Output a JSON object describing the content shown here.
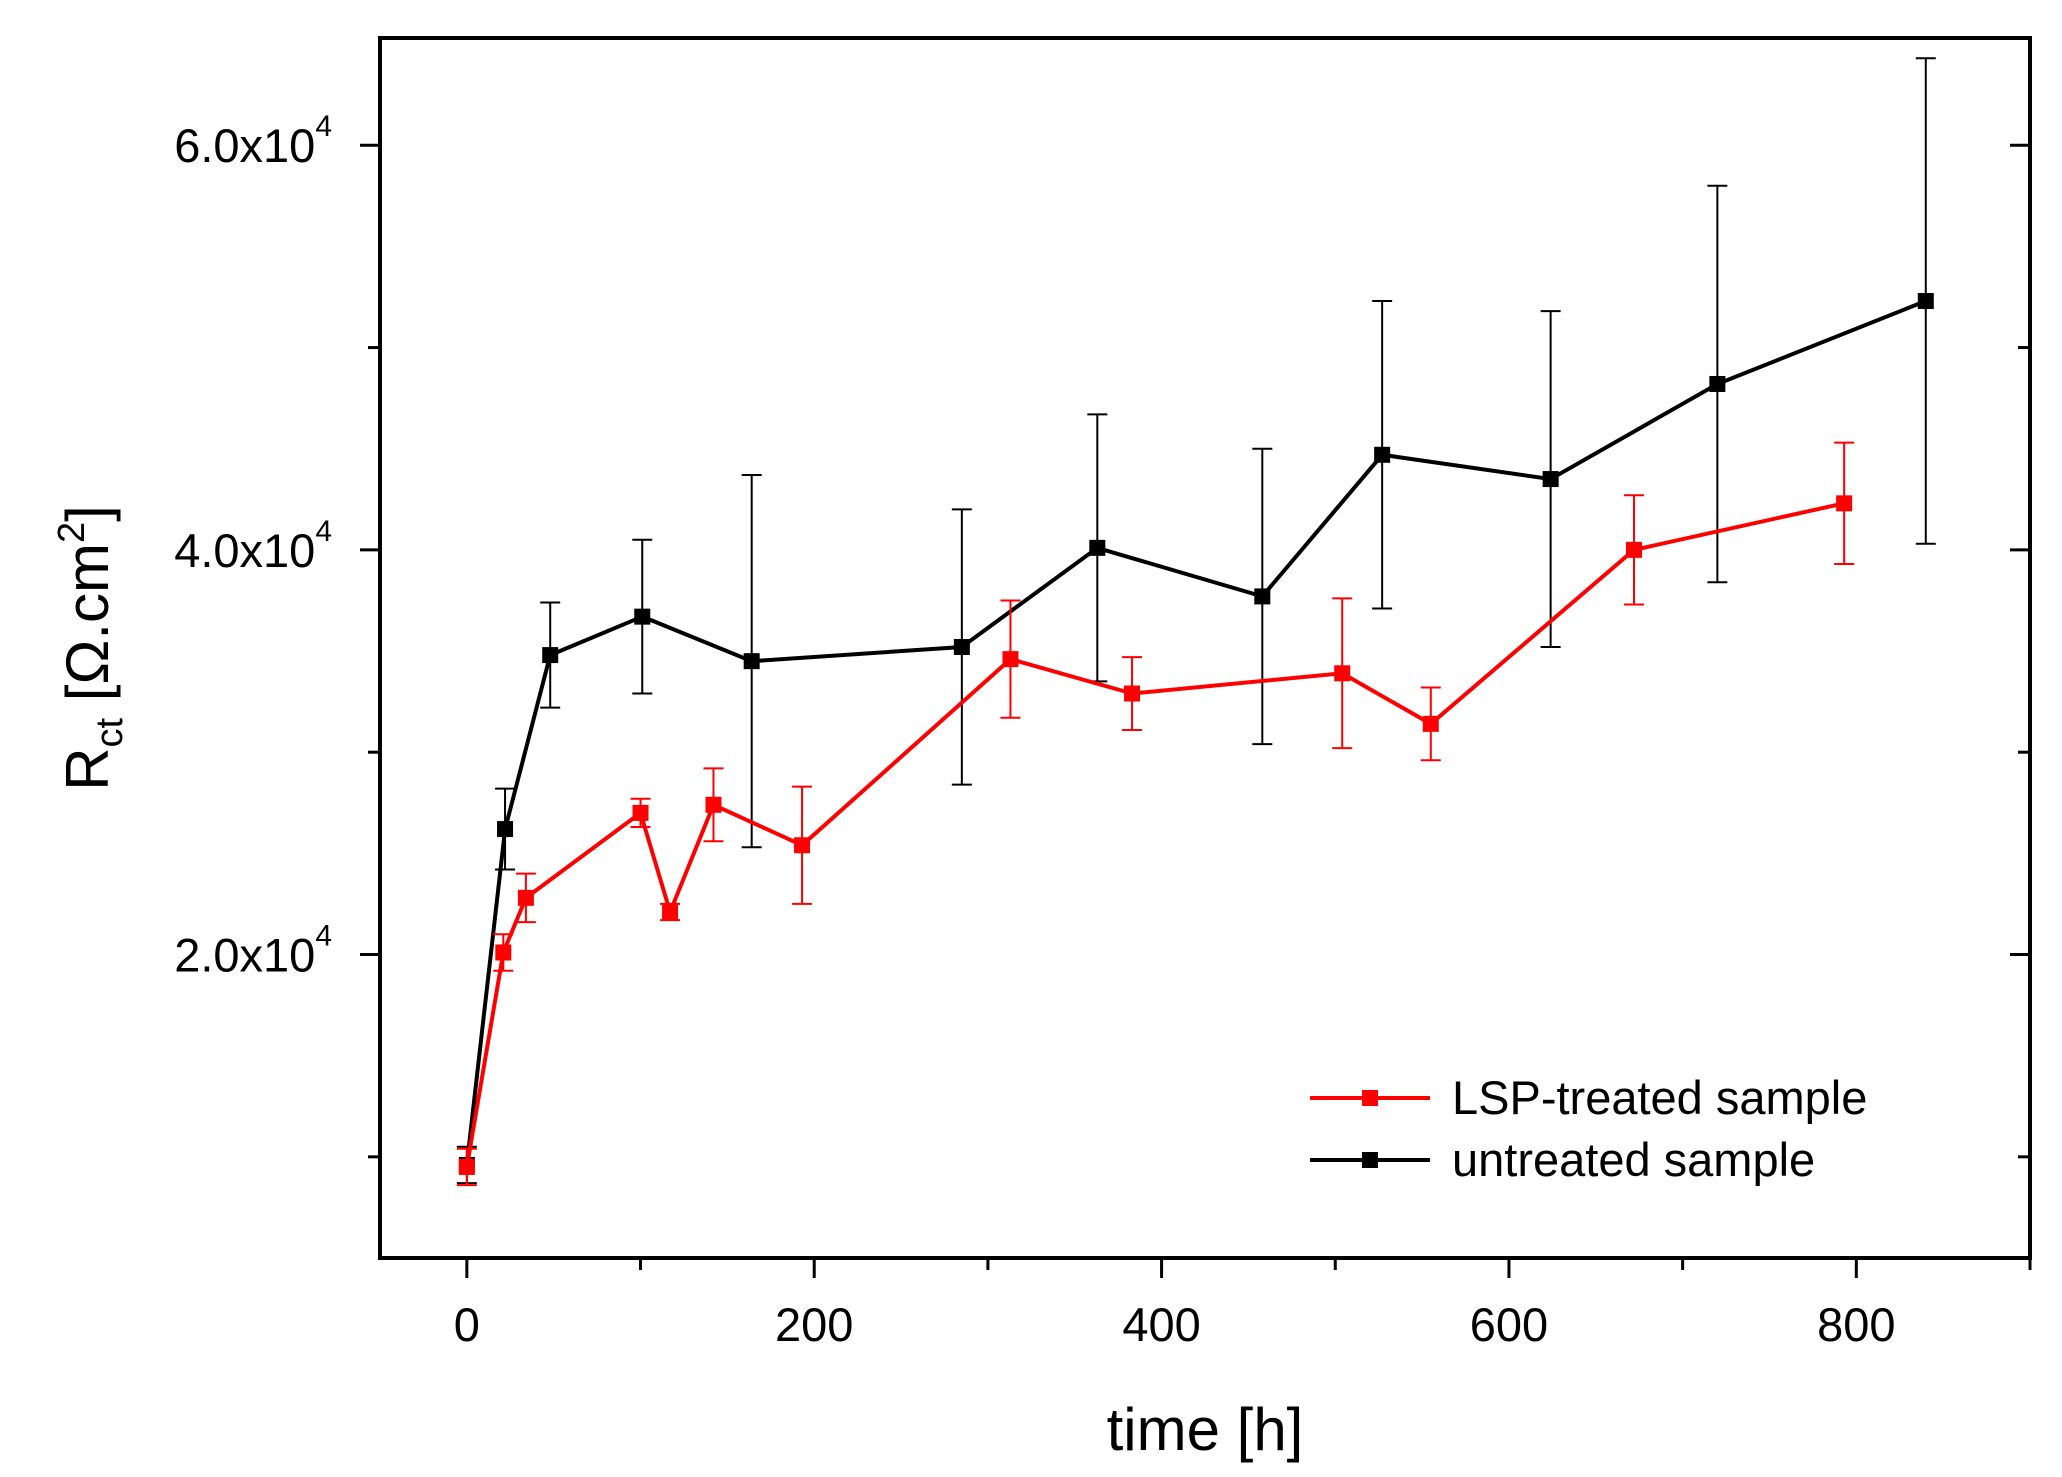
{
  "chart_data": {
    "type": "line",
    "title": "",
    "xlabel": "time [h]",
    "ylabel": {
      "main": "R",
      "sub": "ct",
      "unit_open": " [Ω.cm",
      "unit_sup": "2",
      "unit_close": "]"
    },
    "xlim": [
      -50,
      900
    ],
    "ylim": [
      5000,
      65300
    ],
    "x_ticks": [
      {
        "value": 0,
        "label": "0"
      },
      {
        "value": 200,
        "label": "200"
      },
      {
        "value": 400,
        "label": "400"
      },
      {
        "value": 600,
        "label": "600"
      },
      {
        "value": 800,
        "label": "800"
      }
    ],
    "x_minor_ticks": [
      100,
      300,
      500,
      700,
      900
    ],
    "y_ticks": [
      {
        "value": 20000,
        "mantissa": "2.0x10",
        "exponent": "4"
      },
      {
        "value": 40000,
        "mantissa": "4.0x10",
        "exponent": "4"
      },
      {
        "value": 60000,
        "mantissa": "6.0x10",
        "exponent": "4"
      }
    ],
    "y_minor_ticks": [
      10000,
      30000,
      50000
    ],
    "grid": false,
    "legend_position": "bottom-right",
    "series": [
      {
        "name": "LSP-treated sample",
        "color": "#ff0000",
        "marker": "square",
        "points": [
          {
            "x": 0,
            "y": 9500,
            "err": 900
          },
          {
            "x": 21,
            "y": 20100,
            "err": 900
          },
          {
            "x": 34,
            "y": 22800,
            "err": 1200
          },
          {
            "x": 100,
            "y": 27000,
            "err": 700
          },
          {
            "x": 117,
            "y": 22100,
            "err": 400
          },
          {
            "x": 142,
            "y": 27400,
            "err": 1800
          },
          {
            "x": 193,
            "y": 25400,
            "err": 2900
          },
          {
            "x": 313,
            "y": 34600,
            "err": 2900
          },
          {
            "x": 383,
            "y": 32900,
            "err": 1800
          },
          {
            "x": 504,
            "y": 33900,
            "err": 3700
          },
          {
            "x": 555,
            "y": 31400,
            "err": 1800
          },
          {
            "x": 672,
            "y": 40000,
            "err": 2700
          },
          {
            "x": 793,
            "y": 42300,
            "err": 3000
          }
        ]
      },
      {
        "name": "untreated sample",
        "color": "#000000",
        "marker": "square",
        "points": [
          {
            "x": 0,
            "y": 9600,
            "err": 900
          },
          {
            "x": 22,
            "y": 26200,
            "err": 2000
          },
          {
            "x": 48,
            "y": 34800,
            "err": 2600
          },
          {
            "x": 101,
            "y": 36700,
            "err": 3800
          },
          {
            "x": 164,
            "y": 34500,
            "err": 9200
          },
          {
            "x": 285,
            "y": 35200,
            "err": 6800
          },
          {
            "x": 363,
            "y": 40100,
            "err": 6600
          },
          {
            "x": 458,
            "y": 37700,
            "err": 7300
          },
          {
            "x": 527,
            "y": 44700,
            "err": 7600
          },
          {
            "x": 624,
            "y": 43500,
            "err": 8300
          },
          {
            "x": 720,
            "y": 48200,
            "err": 9800
          },
          {
            "x": 840,
            "y": 52300,
            "err": 12000
          }
        ]
      }
    ]
  }
}
